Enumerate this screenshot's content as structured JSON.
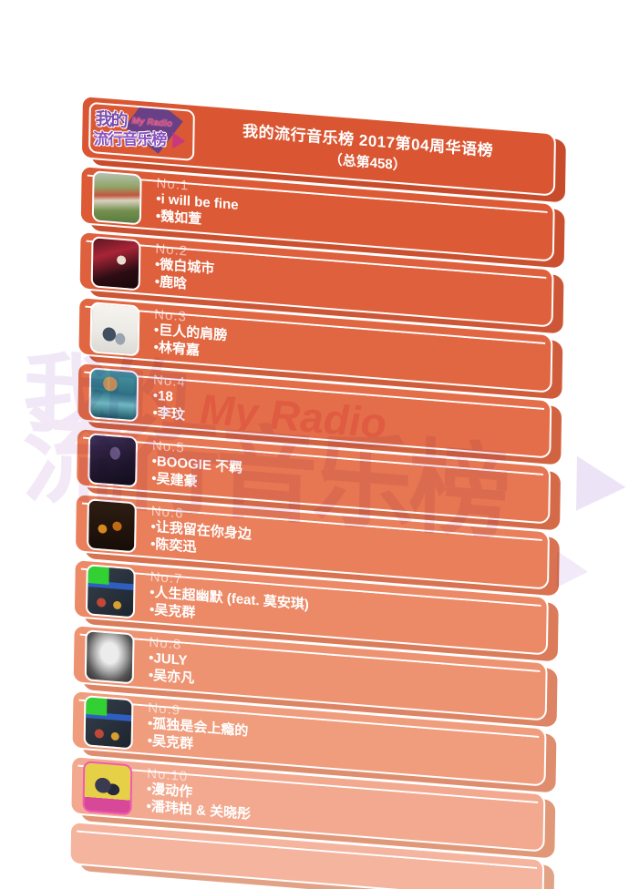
{
  "header": {
    "logo": {
      "cn_top": "我的",
      "badge": "My Radio",
      "cn_bottom": "流行音乐榜"
    },
    "title_line1": "我的流行音乐榜 2017第04周华语榜",
    "title_line2": "（总第458）"
  },
  "chart": {
    "items": [
      {
        "rank": "No.1",
        "song": "•i will be fine",
        "artist": "•魏如萱"
      },
      {
        "rank": "No.2",
        "song": "•微白城市",
        "artist": "•鹿晗"
      },
      {
        "rank": "No.3",
        "song": "•巨人的肩膀",
        "artist": "•林宥嘉"
      },
      {
        "rank": "No.4",
        "song": "•18",
        "artist": "•李玟"
      },
      {
        "rank": "No.5",
        "song": "•BOOGIE 不羁",
        "artist": "•吴建豪"
      },
      {
        "rank": "No.6",
        "song": "•让我留在你身边",
        "artist": "•陈奕迅"
      },
      {
        "rank": "No.7",
        "song": "•人生超幽默 (feat. 莫安琪)",
        "artist": "•吴克群"
      },
      {
        "rank": "No.8",
        "song": "•JULY",
        "artist": "•吴亦凡"
      },
      {
        "rank": "No.9",
        "song": "•孤独是会上瘾的",
        "artist": "•吴克群"
      },
      {
        "rank": "No.10",
        "song": "•漫动作",
        "artist": "•潘玮柏 & 关晓彤"
      }
    ]
  },
  "watermark": {
    "cn_top": "我的",
    "badge": "My Radio",
    "cn_bottom": "流行音乐榜"
  },
  "colors": {
    "bar_top": "#DA5632",
    "bar_bottom": "#F4B49E",
    "bar_side_top": "#C84C2C",
    "outline": "#FFFFFF",
    "logo_purple": "#7B4FB2",
    "logo_pink": "#E8376E",
    "watermark_lavender": "#E3D5F0",
    "watermark_pink": "#F6AEC6",
    "text": "#FFFFFF"
  },
  "chart_data": {
    "type": "table",
    "title": "我的流行音乐榜 2017第04周华语榜（总第458）",
    "columns": [
      "rank",
      "song",
      "artist"
    ],
    "rows": [
      [
        1,
        "i will be fine",
        "魏如萱"
      ],
      [
        2,
        "微白城市",
        "鹿晗"
      ],
      [
        3,
        "巨人的肩膀",
        "林宥嘉"
      ],
      [
        4,
        "18",
        "李玟"
      ],
      [
        5,
        "BOOGIE 不羁",
        "吴建豪"
      ],
      [
        6,
        "让我留在你身边",
        "陈奕迅"
      ],
      [
        7,
        "人生超幽默 (feat. 莫安琪)",
        "吴克群"
      ],
      [
        8,
        "JULY",
        "吴亦凡"
      ],
      [
        9,
        "孤独是会上瘾的",
        "吴克群"
      ],
      [
        10,
        "漫动作",
        "潘玮柏 & 关晓彤"
      ]
    ]
  }
}
